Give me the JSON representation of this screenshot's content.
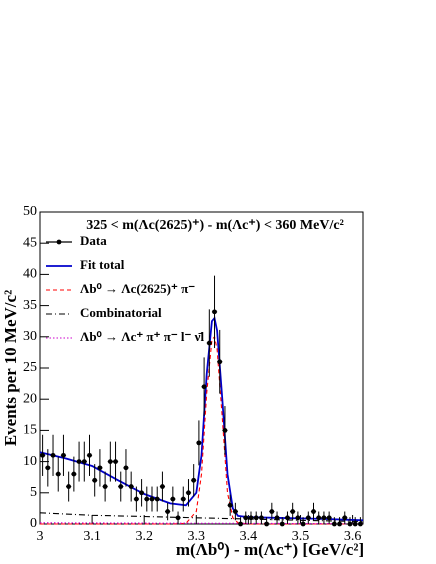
{
  "chart_data": {
    "type": "histogram_fit",
    "title": "325 < m(Λc(2625)⁺) - m(Λc⁺) < 360 MeV/c²",
    "xlabel": "m(Λb⁰) - m(Λc⁺)    [GeV/c²]",
    "ylabel": "Events per 10 MeV/c²",
    "xlim": [
      3,
      3.62
    ],
    "ylim": [
      0,
      50
    ],
    "xticks": [
      3,
      3.1,
      3.2,
      3.3,
      3.4,
      3.5,
      3.6
    ],
    "yticks": [
      0,
      5,
      10,
      15,
      20,
      25,
      30,
      35,
      40,
      45,
      50
    ],
    "bin_width": 0.01,
    "data": {
      "name": "Data",
      "color": "#000000",
      "x": [
        3.005,
        3.015,
        3.025,
        3.035,
        3.045,
        3.055,
        3.065,
        3.075,
        3.085,
        3.095,
        3.105,
        3.115,
        3.125,
        3.135,
        3.145,
        3.155,
        3.165,
        3.175,
        3.185,
        3.195,
        3.205,
        3.215,
        3.225,
        3.235,
        3.245,
        3.255,
        3.265,
        3.275,
        3.285,
        3.295,
        3.305,
        3.315,
        3.325,
        3.335,
        3.345,
        3.355,
        3.365,
        3.375,
        3.385,
        3.395,
        3.405,
        3.415,
        3.425,
        3.435,
        3.445,
        3.455,
        3.465,
        3.475,
        3.485,
        3.495,
        3.505,
        3.515,
        3.525,
        3.535,
        3.545,
        3.555,
        3.565,
        3.575,
        3.585,
        3.595,
        3.605,
        3.615
      ],
      "values": [
        11,
        9,
        11,
        8,
        11,
        6,
        8,
        10,
        10,
        11,
        7,
        9,
        6,
        10,
        10,
        6,
        9,
        6,
        4,
        5,
        4,
        4,
        4,
        6,
        2,
        4,
        1,
        4,
        5,
        7,
        13,
        22,
        29,
        34,
        26,
        15,
        3,
        2,
        0,
        1,
        1,
        1,
        1,
        0,
        2,
        1,
        0,
        1,
        2,
        1,
        0,
        1,
        2,
        1,
        1,
        1,
        0,
        0,
        1,
        0,
        0,
        0
      ],
      "errors": [
        3.3,
        3,
        3.3,
        2.8,
        3.3,
        2.4,
        2.8,
        3.2,
        3.2,
        3.3,
        2.6,
        3,
        2.4,
        3.2,
        3.2,
        2.4,
        3,
        2.4,
        2,
        2.2,
        2,
        2,
        2,
        2.4,
        1.4,
        2,
        1,
        2,
        2.2,
        2.6,
        3.6,
        4.7,
        5.4,
        5.8,
        5.1,
        3.9,
        1.7,
        1.4,
        1.1,
        1,
        1,
        1,
        1,
        1.1,
        1.4,
        1,
        1.1,
        1,
        1.4,
        1,
        1.1,
        1,
        1.4,
        1,
        1,
        1,
        1.1,
        1.1,
        1,
        1.1,
        1.1,
        1.1
      ]
    },
    "series": [
      {
        "name": "Fit total",
        "color": "#0000cc",
        "dash": "solid",
        "x": [
          3.0,
          3.05,
          3.1,
          3.15,
          3.2,
          3.25,
          3.28,
          3.3,
          3.31,
          3.32,
          3.33,
          3.335,
          3.34,
          3.35,
          3.36,
          3.37,
          3.38,
          3.4,
          3.45,
          3.5,
          3.55,
          3.62
        ],
        "values": [
          11.5,
          10.5,
          9.3,
          7,
          4.8,
          3.3,
          3,
          5,
          11,
          24,
          32.5,
          33,
          31,
          20,
          8,
          2.5,
          1.3,
          1.1,
          1,
          0.9,
          0.8,
          0.6
        ]
      },
      {
        "name": "Λb⁰ → Λc(2625)⁺ π⁻",
        "color": "#ff0000",
        "dash": "dashed",
        "x": [
          3.0,
          3.05,
          3.1,
          3.15,
          3.2,
          3.25,
          3.28,
          3.3,
          3.31,
          3.32,
          3.33,
          3.335,
          3.34,
          3.35,
          3.36,
          3.37,
          3.38,
          3.4,
          3.45,
          3.5,
          3.55,
          3.62
        ],
        "values": [
          0,
          0,
          0,
          0,
          0,
          0,
          0.1,
          2,
          8,
          21,
          29.5,
          30,
          28,
          17,
          5,
          1,
          0.2,
          0,
          0,
          0,
          0,
          0
        ]
      },
      {
        "name": "Combinatorial",
        "color": "#000000",
        "dash": "dashdot",
        "x": [
          3.0,
          3.1,
          3.2,
          3.3,
          3.4,
          3.5,
          3.62
        ],
        "values": [
          1.8,
          1.4,
          1.2,
          1,
          0.8,
          0.6,
          0.4
        ]
      },
      {
        "name": "Λb⁰ → Λc⁺ π⁺ π⁻ l⁻ ν̄l",
        "color": "#cc00cc",
        "dash": "dotted",
        "x": [
          3.0,
          3.2,
          3.4,
          3.62
        ],
        "values": [
          0.2,
          0.15,
          0.1,
          0.05
        ]
      }
    ]
  }
}
